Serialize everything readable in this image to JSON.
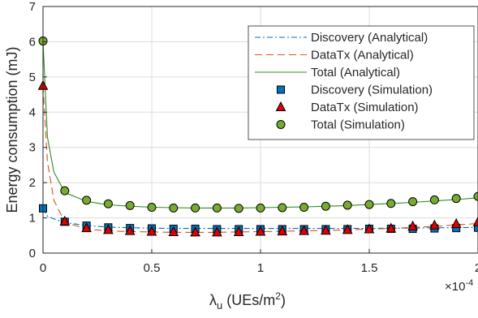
{
  "chart_data": {
    "type": "line",
    "title": "",
    "xlabel": "λu (UEs/m²)",
    "xlabel_parts": {
      "symbol": "λ",
      "subscript": "u",
      "units": "(UEs/m",
      "superscript": "2",
      "close": ")"
    },
    "ylabel": "Energy consumption (mJ)",
    "xlim": [
      0,
      0.0002
    ],
    "ylim": [
      0,
      7
    ],
    "x_ticks": [
      0,
      0.5,
      1,
      1.5,
      2
    ],
    "x_tick_labels": [
      "0",
      "0.5",
      "1",
      "1.5",
      "2"
    ],
    "x_scale_multiplier": {
      "base": "×10",
      "exponent": "-4"
    },
    "y_ticks": [
      0,
      1,
      2,
      3,
      4,
      5,
      6,
      7
    ],
    "y_tick_labels": [
      "0",
      "1",
      "2",
      "3",
      "4",
      "5",
      "6",
      "7"
    ],
    "grid": true,
    "legend_position": "top-right",
    "series": [
      {
        "name": "Discovery (Analytical)",
        "style": "dashdot",
        "color": "#0072BD",
        "x": [
          0,
          2e-06,
          5e-06,
          1e-05,
          2e-05,
          3e-05,
          4e-05,
          5e-05,
          6e-05,
          7e-05,
          8e-05,
          9e-05,
          0.0001,
          0.00011,
          0.00012,
          0.00013,
          0.00014,
          0.00015,
          0.00016,
          0.00017,
          0.00018,
          0.00019,
          0.0002
        ],
        "y": [
          1.27,
          1.05,
          0.97,
          0.87,
          0.78,
          0.74,
          0.72,
          0.71,
          0.7,
          0.7,
          0.7,
          0.7,
          0.7,
          0.7,
          0.7,
          0.7,
          0.7,
          0.7,
          0.71,
          0.71,
          0.72,
          0.72,
          0.73
        ]
      },
      {
        "name": "DataTx (Analytical)",
        "style": "dashed",
        "color": "#D95319",
        "x": [
          0,
          2e-06,
          5e-06,
          1e-05,
          2e-05,
          3e-05,
          4e-05,
          5e-05,
          6e-05,
          7e-05,
          8e-05,
          9e-05,
          0.0001,
          0.00011,
          0.00012,
          0.00013,
          0.00014,
          0.00015,
          0.00016,
          0.00017,
          0.00018,
          0.00019,
          0.0002
        ],
        "y": [
          4.75,
          2.6,
          1.5,
          0.88,
          0.68,
          0.63,
          0.61,
          0.6,
          0.59,
          0.59,
          0.59,
          0.6,
          0.61,
          0.62,
          0.63,
          0.64,
          0.66,
          0.68,
          0.7,
          0.73,
          0.76,
          0.8,
          0.84
        ]
      },
      {
        "name": "Total (Analytical)",
        "style": "solid",
        "color": "#2E8B1E",
        "x": [
          0,
          2e-06,
          5e-06,
          1e-05,
          2e-05,
          3e-05,
          4e-05,
          5e-05,
          6e-05,
          7e-05,
          8e-05,
          9e-05,
          0.0001,
          0.00011,
          0.00012,
          0.00013,
          0.00014,
          0.00015,
          0.00016,
          0.00017,
          0.00018,
          0.00019,
          0.0002
        ],
        "y": [
          6.02,
          3.3,
          2.3,
          1.72,
          1.47,
          1.37,
          1.33,
          1.3,
          1.29,
          1.28,
          1.28,
          1.28,
          1.29,
          1.3,
          1.31,
          1.33,
          1.35,
          1.38,
          1.41,
          1.44,
          1.48,
          1.52,
          1.57
        ]
      },
      {
        "name": "Discovery (Simulation)",
        "marker": "square",
        "color": "#0072BD",
        "x": [
          0,
          1e-05,
          2e-05,
          3e-05,
          4e-05,
          5e-05,
          6e-05,
          7e-05,
          8e-05,
          9e-05,
          0.0001,
          0.00011,
          0.00012,
          0.00013,
          0.00014,
          0.00015,
          0.00016,
          0.00017,
          0.00018,
          0.00019,
          0.0002
        ],
        "y": [
          1.27,
          0.89,
          0.78,
          0.73,
          0.71,
          0.7,
          0.69,
          0.69,
          0.68,
          0.68,
          0.68,
          0.68,
          0.68,
          0.68,
          0.68,
          0.69,
          0.69,
          0.69,
          0.7,
          0.71,
          0.72
        ]
      },
      {
        "name": "DataTx (Simulation)",
        "marker": "triangle",
        "color": "#E00000",
        "x": [
          0,
          1e-05,
          2e-05,
          3e-05,
          4e-05,
          5e-05,
          6e-05,
          7e-05,
          8e-05,
          9e-05,
          0.0001,
          0.00011,
          0.00012,
          0.00013,
          0.00014,
          0.00015,
          0.00016,
          0.00017,
          0.00018,
          0.00019,
          0.0002
        ],
        "y": [
          4.75,
          0.9,
          0.71,
          0.66,
          0.63,
          0.61,
          0.6,
          0.59,
          0.59,
          0.6,
          0.61,
          0.62,
          0.63,
          0.64,
          0.66,
          0.68,
          0.7,
          0.76,
          0.79,
          0.83,
          0.88
        ]
      },
      {
        "name": "Total (Simulation)",
        "marker": "circle",
        "color": "#77AC30",
        "x": [
          0,
          1e-05,
          2e-05,
          3e-05,
          4e-05,
          5e-05,
          6e-05,
          7e-05,
          8e-05,
          9e-05,
          0.0001,
          0.00011,
          0.00012,
          0.00013,
          0.00014,
          0.00015,
          0.00016,
          0.00017,
          0.00018,
          0.00019,
          0.0002
        ],
        "y": [
          6.02,
          1.77,
          1.5,
          1.4,
          1.35,
          1.3,
          1.28,
          1.28,
          1.28,
          1.27,
          1.28,
          1.29,
          1.3,
          1.33,
          1.36,
          1.38,
          1.41,
          1.46,
          1.51,
          1.55,
          1.61
        ]
      }
    ]
  }
}
